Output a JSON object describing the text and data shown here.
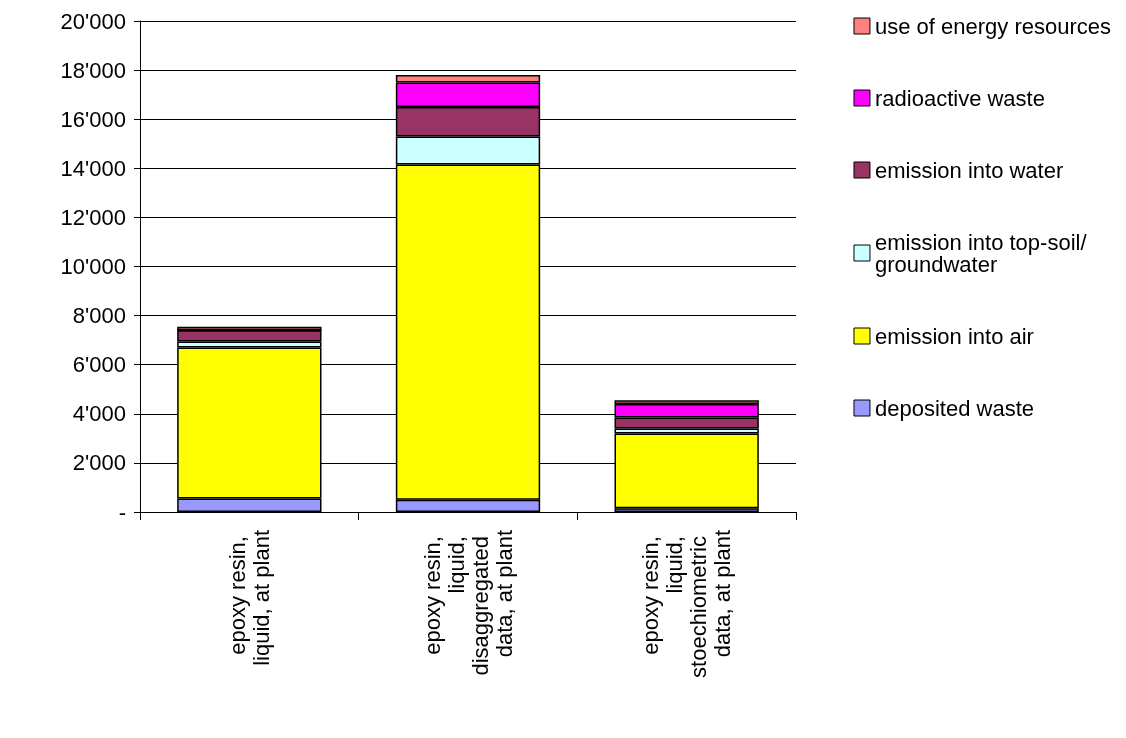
{
  "chart_data": {
    "type": "bar",
    "stacked": true,
    "categories": [
      "epoxy resin, liquid, at plant",
      "epoxy resin, liquid, disaggregated data, at plant",
      "epoxy resin, liquid, stoechiometric data, at plant"
    ],
    "series": [
      {
        "name": "deposited waste",
        "color": "#9999ff",
        "values": [
          550,
          500,
          150
        ]
      },
      {
        "name": "emission into air",
        "color": "#ffff00",
        "values": [
          6150,
          13650,
          3050
        ]
      },
      {
        "name": "emission into top-soil/groundwater",
        "color": "#ccffff",
        "values": [
          250,
          1150,
          200
        ]
      },
      {
        "name": "emission into water",
        "color": "#993366",
        "values": [
          450,
          1200,
          450
        ]
      },
      {
        "name": "radioactive waste",
        "color": "#ff00ff",
        "values": [
          0,
          1000,
          550
        ]
      },
      {
        "name": "use of energy resources",
        "color": "#ff8080",
        "values": [
          150,
          300,
          150
        ]
      }
    ],
    "ylim": [
      0,
      20000
    ],
    "yticks": [
      {
        "value": 0,
        "label": "-"
      },
      {
        "value": 2000,
        "label": "2'000"
      },
      {
        "value": 4000,
        "label": "4'000"
      },
      {
        "value": 6000,
        "label": "6'000"
      },
      {
        "value": 8000,
        "label": "8'000"
      },
      {
        "value": 10000,
        "label": "10'000"
      },
      {
        "value": 12000,
        "label": "12'000"
      },
      {
        "value": 14000,
        "label": "14'000"
      },
      {
        "value": 16000,
        "label": "16'000"
      },
      {
        "value": 18000,
        "label": "18'000"
      },
      {
        "value": 20000,
        "label": "20'000"
      }
    ],
    "grid": "y",
    "legend": "right"
  }
}
